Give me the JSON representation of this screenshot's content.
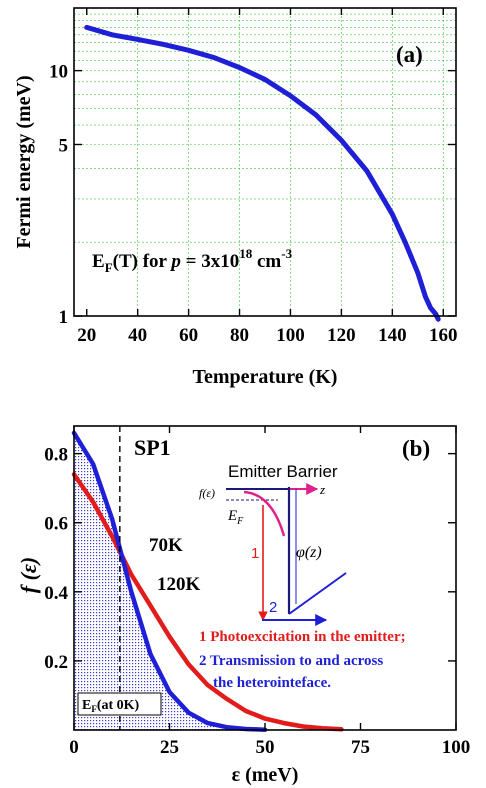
{
  "chart_data": [
    {
      "type": "line",
      "panel_label": "(a)",
      "xlabel": "Temperature (K)",
      "ylabel": "Fermi energy (meV)",
      "xlim": [
        15,
        165
      ],
      "ylim": [
        1,
        18
      ],
      "yscale": "log",
      "grid": true,
      "xticks": [
        20,
        40,
        60,
        80,
        100,
        120,
        140,
        160
      ],
      "yticks": [
        1,
        5,
        10
      ],
      "annotation": {
        "main": "E",
        "sub": "F",
        "mid": "(T) for ",
        "var": "p",
        "eq": " = 3x10",
        "sup": "18",
        "unit": " cm",
        "unit_sup": "-3"
      },
      "series": [
        {
          "color": "#1f1fd6",
          "x": [
            20,
            30,
            40,
            50,
            60,
            70,
            80,
            90,
            100,
            110,
            120,
            130,
            140,
            145,
            150,
            153,
            155,
            157,
            158
          ],
          "y": [
            15.0,
            14.0,
            13.4,
            12.8,
            12.1,
            11.3,
            10.3,
            9.2,
            7.9,
            6.6,
            5.2,
            3.9,
            2.6,
            2.0,
            1.5,
            1.2,
            1.08,
            1.02,
            0.97
          ]
        }
      ]
    },
    {
      "type": "line",
      "panel_label": "(b)",
      "title": "SP1",
      "xlabel": "ε (meV)",
      "ylabel": "f (ε)",
      "xlim": [
        0,
        100
      ],
      "ylim": [
        0,
        0.88
      ],
      "grid": false,
      "xticks": [
        0,
        25,
        50,
        75,
        100
      ],
      "yticks": [
        0.2,
        0.4,
        0.6,
        0.8
      ],
      "ef_marker": {
        "x": 12,
        "label_main": "E",
        "label_sub": "F",
        "label_rest": "(at 0K)"
      },
      "series": [
        {
          "name": "70K",
          "color": "#1f1fd6",
          "x": [
            0,
            5,
            10,
            15,
            20,
            25,
            30,
            35,
            40,
            45,
            50
          ],
          "y": [
            0.86,
            0.77,
            0.61,
            0.4,
            0.22,
            0.11,
            0.05,
            0.02,
            0.008,
            0.003,
            0.001
          ]
        },
        {
          "name": "120K",
          "color": "#e21b1b",
          "x": [
            0,
            5,
            10,
            15,
            20,
            25,
            30,
            35,
            40,
            45,
            50,
            55,
            60,
            65,
            70
          ],
          "y": [
            0.74,
            0.66,
            0.56,
            0.45,
            0.36,
            0.27,
            0.19,
            0.13,
            0.09,
            0.055,
            0.033,
            0.02,
            0.01,
            0.005,
            0.002
          ]
        }
      ],
      "inset": {
        "title": "Emitter Barrier",
        "f_label": "f(ε)",
        "ef_main": "E",
        "ef_sub": "F",
        "z_label": "z",
        "phi_label": "φ(z)",
        "arrow1_label": "1",
        "arrow2_label": "2",
        "colors": {
          "red": "#e21b1b",
          "blue": "#1f1fd6",
          "magenta": "#e0218a",
          "navy": "#1a1a7a"
        }
      },
      "legend_notes": [
        {
          "text": "1 Photoexcitation in the emitter;",
          "color": "#e21b1b"
        },
        {
          "text": "2 Transmission to and across",
          "color": "#1f1fd6"
        },
        {
          "text": "the heterointeface.",
          "color": "#1f1fd6"
        }
      ]
    }
  ]
}
